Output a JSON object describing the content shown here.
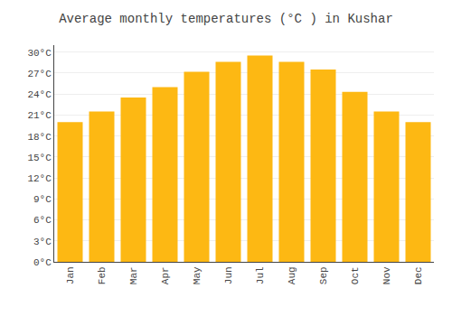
{
  "chart_data": {
    "type": "bar",
    "title": "Average monthly temperatures (°C ) in Kushar",
    "categories": [
      "Jan",
      "Feb",
      "Mar",
      "Apr",
      "May",
      "Jun",
      "Jul",
      "Aug",
      "Sep",
      "Oct",
      "Nov",
      "Dec"
    ],
    "values": [
      20.0,
      21.5,
      23.5,
      25.0,
      27.2,
      28.6,
      29.5,
      28.6,
      27.5,
      24.3,
      21.5,
      20.0
    ],
    "color": "#FDB813",
    "ylim": [
      0,
      31
    ],
    "yticks": [
      {
        "value": 0,
        "label": "0°C"
      },
      {
        "value": 3,
        "label": "3°C"
      },
      {
        "value": 6,
        "label": "6°C"
      },
      {
        "value": 9,
        "label": "9°C"
      },
      {
        "value": 12,
        "label": "12°C"
      },
      {
        "value": 15,
        "label": "15°C"
      },
      {
        "value": 18,
        "label": "18°C"
      },
      {
        "value": 21,
        "label": "21°C"
      },
      {
        "value": 24,
        "label": "24°C"
      },
      {
        "value": 27,
        "label": "27°C"
      },
      {
        "value": 30,
        "label": "30°C"
      }
    ],
    "grid": true
  }
}
